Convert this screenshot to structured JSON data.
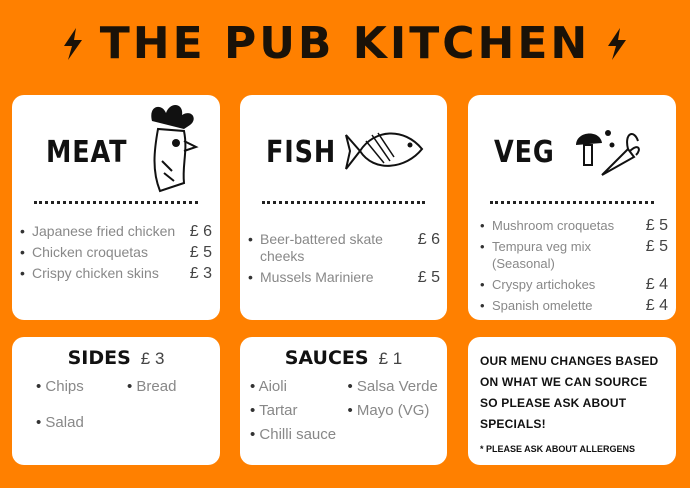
{
  "title": "THE PUB KITCHEN",
  "sections": {
    "meat": {
      "heading": "MEAT",
      "items": [
        {
          "name": "Japanese fried chicken",
          "price": "£ 6"
        },
        {
          "name": "Chicken croquetas",
          "price": "£ 5"
        },
        {
          "name": "Crispy chicken skins",
          "price": "£ 3"
        }
      ]
    },
    "fish": {
      "heading": "FISH",
      "items": [
        {
          "name": "Beer-battered skate cheeks",
          "price": "£ 6"
        },
        {
          "name": "Mussels Mariniere",
          "price": "£ 5"
        }
      ]
    },
    "veg": {
      "heading": "VEG",
      "items": [
        {
          "name": "Mushroom croquetas",
          "price": "£ 5"
        },
        {
          "name": "Tempura veg mix (Seasonal)",
          "price": "£ 5"
        },
        {
          "name": "Cryspy artichokes",
          "price": "£ 4"
        },
        {
          "name": "Spanish omelette",
          "price": "£ 4"
        }
      ]
    },
    "sides": {
      "heading": "SIDES",
      "price": "£ 3",
      "items": [
        "Chips",
        "Bread",
        "Salad"
      ]
    },
    "sauces": {
      "heading": "SAUCES",
      "price": "£ 1",
      "items": [
        "Aioli",
        "Salsa Verde",
        "Tartar",
        "Mayo (VG)",
        "Chilli sauce"
      ]
    }
  },
  "notice": {
    "text": "OUR MENU CHANGES BASED ON WHAT WE CAN SOURCE SO PLEASE ASK ABOUT SPECIALS!",
    "note": "* PLEASE ASK ABOUT ALLERGENS"
  },
  "colors": {
    "background": "#ff8000",
    "card": "#ffffff",
    "text": "#111111"
  },
  "icons": [
    "lightning-bolt",
    "rooster",
    "fish",
    "mushroom-carrot"
  ]
}
